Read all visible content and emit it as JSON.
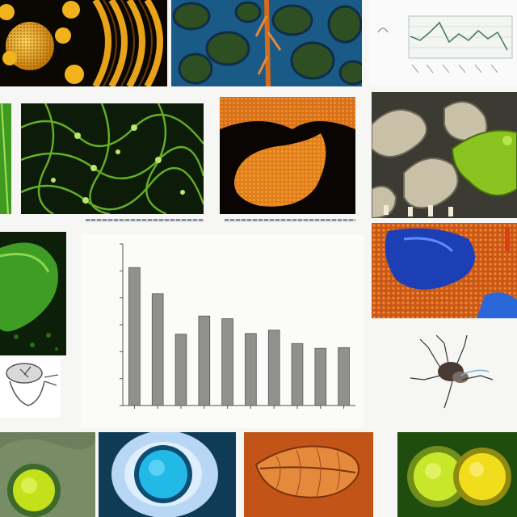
{
  "collage": {
    "panels": [
      {
        "id": "pollen-gold",
        "subject": "golden-spheres-microscopy",
        "colors": [
          "#0b0702",
          "#e9a51c",
          "#f6c33a"
        ]
      },
      {
        "id": "blue-cellular",
        "subject": "blue-green-cellular-tissue",
        "colors": [
          "#0d3a5c",
          "#2f6d2e",
          "#d46a1c"
        ]
      },
      {
        "id": "mini-line-chart",
        "subject": "line-chart-thumbnail",
        "colors": [
          "#5a7f6a",
          "#c7d3c9"
        ]
      },
      {
        "id": "green-network",
        "subject": "green-fluorescent-network",
        "colors": [
          "#0b1a07",
          "#6fbf2a",
          "#b8e86a"
        ]
      },
      {
        "id": "orange-organism",
        "subject": "orange-spiky-organism",
        "colors": [
          "#0a0503",
          "#e07e1a",
          "#f7a33a"
        ]
      },
      {
        "id": "grey-green-3d",
        "subject": "grey-and-green-3d-render",
        "colors": [
          "#7b7466",
          "#c9c0a8",
          "#8ac31f"
        ]
      },
      {
        "id": "green-leaf",
        "subject": "green-leaf-closeup",
        "colors": [
          "#0c1f08",
          "#3f9c25",
          "#8ad94a"
        ]
      },
      {
        "id": "blue-orange-tissue",
        "subject": "blue-and-orange-tissue",
        "colors": [
          "#1c3fb5",
          "#c9571a",
          "#f08a2a"
        ]
      },
      {
        "id": "insect-sketch-left",
        "subject": "insect-sketch",
        "colors": [
          "#ffffff",
          "#555555"
        ]
      },
      {
        "id": "insect-sketch-right",
        "subject": "mosquito-sketch",
        "colors": [
          "#ffffff",
          "#4a3a34"
        ]
      },
      {
        "id": "green-cell",
        "subject": "green-cell-illustration",
        "colors": [
          "#6b7f5c",
          "#c3e01a"
        ]
      },
      {
        "id": "blue-cell",
        "subject": "blue-cell-illustration",
        "colors": [
          "#0f3b57",
          "#23b9e6",
          "#dfeefc"
        ]
      },
      {
        "id": "orange-leaf",
        "subject": "orange-textured-leaf",
        "colors": [
          "#c25418",
          "#e58a3c"
        ]
      },
      {
        "id": "yellow-cells",
        "subject": "yellow-green-dividing-cells",
        "colors": [
          "#1e4d0e",
          "#c8e72a",
          "#f2dd1c"
        ]
      }
    ]
  },
  "chart_data": {
    "type": "bar",
    "values": [
      20.5,
      16.6,
      10.6,
      13.3,
      12.9,
      10.7,
      11.2,
      9.2,
      8.5,
      8.6
    ],
    "ylim": [
      0,
      24
    ],
    "grid": false,
    "bar_color": "#8f918f"
  }
}
